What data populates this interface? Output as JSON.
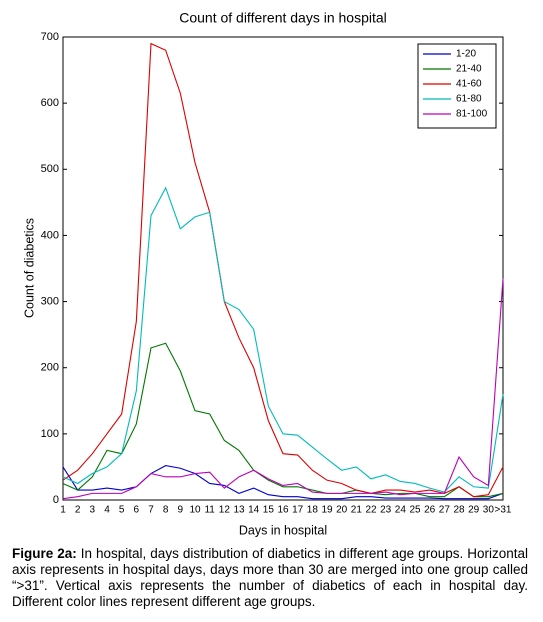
{
  "chart_data": {
    "type": "line",
    "title": "Count of different days in hospital",
    "x_label": "Days in hospital",
    "y_label": "Count of diabetics",
    "categories": [
      "1",
      "2",
      "3",
      "4",
      "5",
      "6",
      "7",
      "8",
      "9",
      "10",
      "11",
      "12",
      "13",
      "14",
      "15",
      "16",
      "17",
      "18",
      "19",
      "20",
      "21",
      "22",
      "23",
      "24",
      "25",
      "26",
      "27",
      "28",
      "29",
      "30",
      ">31"
    ],
    "ylim": [
      0,
      700
    ],
    "yticks": [
      0,
      100,
      200,
      300,
      400,
      500,
      600,
      700
    ],
    "legend": "upper right",
    "series": [
      {
        "name": "1-20",
        "color": "#0000cc",
        "values": [
          50,
          15,
          15,
          18,
          15,
          20,
          40,
          52,
          48,
          40,
          25,
          22,
          10,
          18,
          8,
          5,
          5,
          2,
          2,
          2,
          5,
          5,
          3,
          3,
          3,
          3,
          2,
          2,
          2,
          2,
          10
        ]
      },
      {
        "name": "21-40",
        "color": "#007700",
        "values": [
          25,
          15,
          35,
          75,
          70,
          115,
          230,
          237,
          195,
          135,
          130,
          90,
          75,
          45,
          30,
          20,
          20,
          15,
          10,
          10,
          15,
          10,
          8,
          10,
          10,
          5,
          5,
          20,
          5,
          5,
          10
        ]
      },
      {
        "name": "41-60",
        "color": "#dd0000",
        "values": [
          30,
          45,
          70,
          100,
          130,
          270,
          690,
          680,
          615,
          510,
          435,
          300,
          245,
          200,
          120,
          70,
          68,
          45,
          30,
          25,
          15,
          10,
          15,
          15,
          12,
          15,
          10,
          20,
          5,
          8,
          50
        ]
      },
      {
        "name": "61-80",
        "color": "#00bbbb",
        "values": [
          35,
          25,
          40,
          50,
          70,
          165,
          430,
          472,
          410,
          428,
          435,
          300,
          288,
          258,
          142,
          100,
          98,
          80,
          62,
          45,
          50,
          32,
          38,
          28,
          25,
          18,
          12,
          35,
          20,
          18,
          160
        ]
      },
      {
        "name": "81-100",
        "color": "#bb00bb",
        "values": [
          2,
          5,
          10,
          10,
          10,
          20,
          40,
          35,
          35,
          40,
          42,
          18,
          35,
          45,
          32,
          22,
          25,
          12,
          10,
          10,
          10,
          10,
          12,
          8,
          10,
          10,
          10,
          65,
          35,
          22,
          335
        ]
      }
    ]
  },
  "caption": {
    "label": "Figure 2a:",
    "text": "In hospital, days distribution of diabetics in different age groups. Horizontal axis represents in hospital days, days more than 30 are merged into one group called “>31”. Vertical axis represents the number of diabetics of each in hospital day. Different color lines represent different age groups."
  }
}
